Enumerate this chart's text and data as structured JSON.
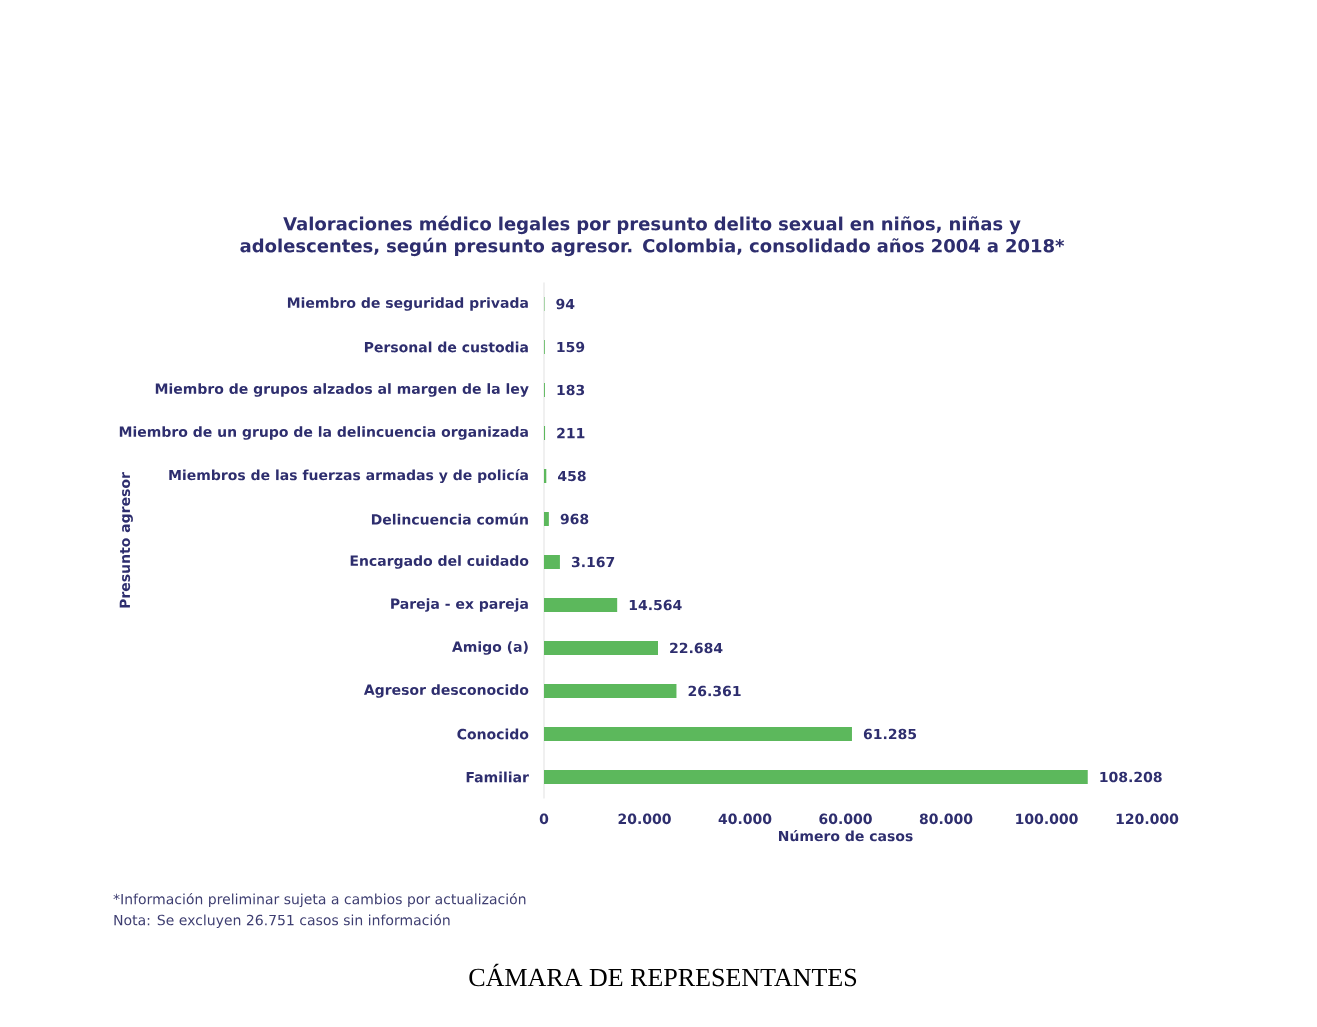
{
  "chart_data": {
    "type": "bar",
    "orientation": "horizontal",
    "title": "Valoraciones médico legales por presunto delito sexual en niños, niñas y adolescentes, según presunto agresor. Colombia, consolidado años 2004 a 2018*",
    "xlabel": "Número de casos",
    "ylabel": "Presunto agresor",
    "categories": [
      "Miembro de seguridad privada",
      "Personal de custodia",
      "Miembro de grupos alzados al margen de la ley",
      "Miembro de un grupo de la delincuencia organizada",
      "Miembros de las fuerzas armadas y de policía",
      "Delincuencia común",
      "Encargado del cuidado",
      "Pareja - ex pareja",
      "Amigo (a)",
      "Agresor desconocido",
      "Conocido",
      "Familiar"
    ],
    "values": [
      94,
      159,
      183,
      211,
      458,
      968,
      3167,
      14564,
      22684,
      26361,
      61285,
      108208
    ],
    "value_labels": [
      "94",
      "159",
      "183",
      "211",
      "458",
      "968",
      "3.167",
      "14.564",
      "22.684",
      "26.361",
      "61.285",
      "108.208"
    ],
    "color": "#5cb85c",
    "xlim": [
      0,
      120000
    ],
    "xticks": [
      0,
      {
        "value": 20000,
        "label": "20.000"
      },
      {
        "value": 40000,
        "label": "40.000"
      },
      {
        "value": 60000,
        "label": "60.000"
      },
      {
        "value": 80000,
        "label": "80.000"
      },
      {
        "value": 100000,
        "label": "100.000"
      },
      {
        "value": 120000,
        "label": "120.000"
      }
    ],
    "annotations": [
      "*Información preliminar sujeta a cambios por actualización",
      "Nota: Se excluyen 26.751 casos sin información",
      "CÁMARA DE REPRESENTANTES"
    ]
  }
}
